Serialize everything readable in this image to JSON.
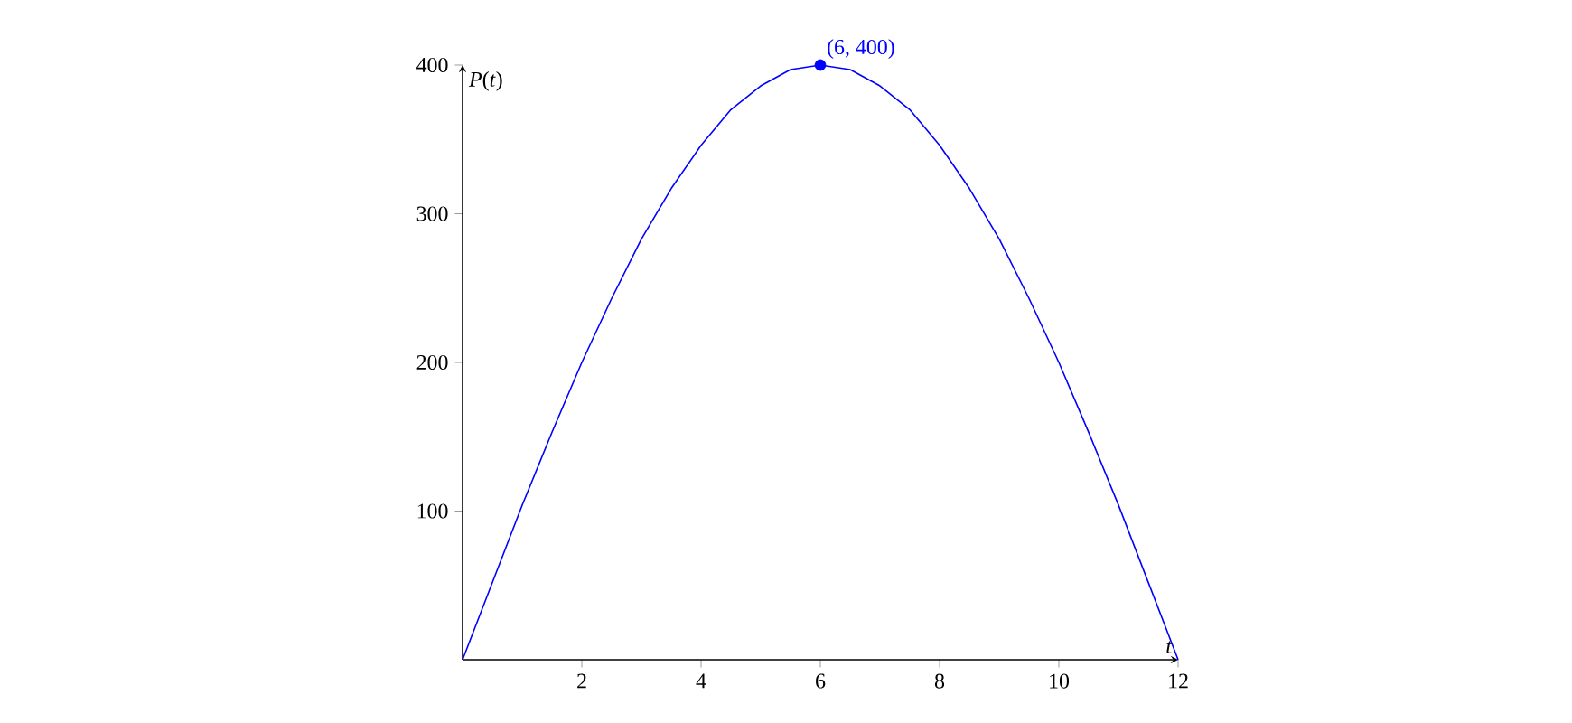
{
  "chart_data": {
    "type": "line",
    "xlabel": "t",
    "ylabel": "*P*(*t*)",
    "x": [
      0,
      0.5,
      1,
      1.5,
      2,
      2.5,
      3,
      3.5,
      4,
      4.5,
      5,
      5.5,
      6,
      6.5,
      7,
      7.5,
      8,
      8.5,
      9,
      9.5,
      10,
      10.5,
      11,
      11.5,
      12
    ],
    "series": [
      {
        "color": "#0000ff",
        "marker": "none",
        "line_style": "solid",
        "values": [
          0,
          52,
          104,
          153,
          200,
          243,
          283,
          317,
          346,
          370,
          386,
          397,
          400,
          397,
          386,
          370,
          346,
          317,
          283,
          243,
          200,
          153,
          104,
          52,
          0
        ]
      },
      {
        "type": "scatter",
        "color": "#0000ff",
        "marker": "circle",
        "x": [
          6
        ],
        "values": [
          400
        ]
      }
    ],
    "annotations": [
      {
        "text": "(6, 400)",
        "x": 6,
        "y": 400
      }
    ],
    "xlim": [
      0,
      12
    ],
    "ylim": [
      0,
      400
    ],
    "xticks": [
      2,
      4,
      6,
      8,
      10,
      12
    ],
    "yticks": [
      100,
      200,
      300,
      400
    ],
    "grid": false
  }
}
